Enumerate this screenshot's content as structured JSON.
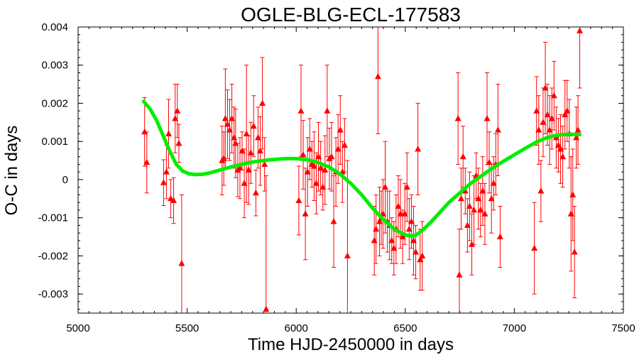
{
  "chart_data": {
    "type": "scatter",
    "title": "OGLE-BLG-ECL-177583",
    "xlabel": "Time HJD-2450000 in days",
    "ylabel": "O-C in days",
    "xlim": [
      5000,
      7500
    ],
    "ylim": [
      -0.0035,
      0.004
    ],
    "xticks": [
      5000,
      5500,
      6000,
      6500,
      7000,
      7500
    ],
    "yticks": [
      -0.003,
      -0.002,
      -0.001,
      0,
      0.001,
      0.002,
      0.003,
      0.004
    ],
    "ytick_labels": [
      "-0.003",
      "-0.002",
      "-0.001",
      "0",
      "0.001",
      "0.002",
      "0.003",
      "0.004"
    ],
    "grid": false,
    "colors": {
      "points": "#ff0000",
      "fit": "#00ee00",
      "axes": "#000000"
    },
    "series": [
      {
        "kind": "points-with-errorbars",
        "marker": "triangle",
        "points": [
          {
            "x": 5305,
            "y": 0.00125,
            "err": 0.0009
          },
          {
            "x": 5315,
            "y": 0.00045,
            "err": 0.0008
          },
          {
            "x": 5392,
            "y": -8e-05,
            "err": 0.0006
          },
          {
            "x": 5405,
            "y": 0.0002,
            "err": 0.0007
          },
          {
            "x": 5415,
            "y": 0.0012,
            "err": 0.0009
          },
          {
            "x": 5425,
            "y": -0.0005,
            "err": 0.0005
          },
          {
            "x": 5438,
            "y": -0.00055,
            "err": 0.0006
          },
          {
            "x": 5445,
            "y": 0.0016,
            "err": 0.0009
          },
          {
            "x": 5455,
            "y": 0.0018,
            "err": 0.0007
          },
          {
            "x": 5462,
            "y": 0.00095,
            "err": 0.0005
          },
          {
            "x": 5475,
            "y": -0.0022,
            "err": 0.0018
          },
          {
            "x": 5660,
            "y": 0.0005,
            "err": 0.0009
          },
          {
            "x": 5668,
            "y": 0.00055,
            "err": 0.0007
          },
          {
            "x": 5675,
            "y": 0.0016,
            "err": 0.0013
          },
          {
            "x": 5685,
            "y": 0.00145,
            "err": 0.0009
          },
          {
            "x": 5695,
            "y": 0.0013,
            "err": 0.0008
          },
          {
            "x": 5705,
            "y": 0.0016,
            "err": 0.0009
          },
          {
            "x": 5715,
            "y": 0.0011,
            "err": 0.0008
          },
          {
            "x": 5722,
            "y": 0.00095,
            "err": 0.0009
          },
          {
            "x": 5732,
            "y": 0.00025,
            "err": 0.0007
          },
          {
            "x": 5742,
            "y": 0.0003,
            "err": 0.0008
          },
          {
            "x": 5752,
            "y": 0.00075,
            "err": 0.0005
          },
          {
            "x": 5762,
            "y": -0.0001,
            "err": 0.0009
          },
          {
            "x": 5772,
            "y": 0.0012,
            "err": 0.0018
          },
          {
            "x": 5782,
            "y": 0.00025,
            "err": 0.0009
          },
          {
            "x": 5792,
            "y": 0.0007,
            "err": 0.0008
          },
          {
            "x": 5805,
            "y": 0.0014,
            "err": 0.0008
          },
          {
            "x": 5815,
            "y": -0.00035,
            "err": 0.0006
          },
          {
            "x": 5825,
            "y": 0.0011,
            "err": 0.0008
          },
          {
            "x": 5835,
            "y": 0.00075,
            "err": 0.0009
          },
          {
            "x": 5845,
            "y": 0.002,
            "err": 0.0012
          },
          {
            "x": 5855,
            "y": 0.0004,
            "err": 0.0007
          },
          {
            "x": 5862,
            "y": -0.0034,
            "err": 0.0035
          },
          {
            "x": 6012,
            "y": -0.00055,
            "err": 0.0009
          },
          {
            "x": 6022,
            "y": 0.0018,
            "err": 0.0012
          },
          {
            "x": 6032,
            "y": 0.00065,
            "err": 0.0009
          },
          {
            "x": 6042,
            "y": -0.0009,
            "err": 0.0012
          },
          {
            "x": 6052,
            "y": 0.0002,
            "err": 0.0009
          },
          {
            "x": 6062,
            "y": 0.0008,
            "err": 0.0008
          },
          {
            "x": 6072,
            "y": 0.0004,
            "err": 0.0006
          },
          {
            "x": 6082,
            "y": 0.00035,
            "err": 0.0009
          },
          {
            "x": 6092,
            "y": -0.0001,
            "err": 0.0008
          },
          {
            "x": 6102,
            "y": 0.0006,
            "err": 0.0009
          },
          {
            "x": 6112,
            "y": 0.0003,
            "err": 0.0007
          },
          {
            "x": 6122,
            "y": -0.0002,
            "err": 0.0006
          },
          {
            "x": 6132,
            "y": 0.00025,
            "err": 0.0009
          },
          {
            "x": 6142,
            "y": 0.0018,
            "err": 0.0012
          },
          {
            "x": 6152,
            "y": 0.00055,
            "err": 0.0008
          },
          {
            "x": 6162,
            "y": 0.0006,
            "err": 0.0009
          },
          {
            "x": 6172,
            "y": -0.0011,
            "err": 0.0012
          },
          {
            "x": 6182,
            "y": 0.0002,
            "err": 0.0009
          },
          {
            "x": 6192,
            "y": 0.0008,
            "err": 0.0009
          },
          {
            "x": 6202,
            "y": 0.0013,
            "err": 0.0009
          },
          {
            "x": 6212,
            "y": 0.0002,
            "err": 0.0008
          },
          {
            "x": 6222,
            "y": 0.0009,
            "err": 0.0007
          },
          {
            "x": 6235,
            "y": -0.002,
            "err": 0.0025
          },
          {
            "x": 6358,
            "y": -0.0016,
            "err": 0.0009
          },
          {
            "x": 6366,
            "y": -0.0013,
            "err": 0.0009
          },
          {
            "x": 6375,
            "y": 0.0027,
            "err": 0.0015
          },
          {
            "x": 6382,
            "y": -0.0011,
            "err": 0.0009
          },
          {
            "x": 6390,
            "y": -0.001,
            "err": 0.0007
          },
          {
            "x": 6398,
            "y": -0.0009,
            "err": 0.0009
          },
          {
            "x": 6408,
            "y": -0.0002,
            "err": 0.0012
          },
          {
            "x": 6418,
            "y": -0.0011,
            "err": 0.0008
          },
          {
            "x": 6428,
            "y": -0.0012,
            "err": 0.0009
          },
          {
            "x": 6438,
            "y": -0.0016,
            "err": 0.0006
          },
          {
            "x": 6448,
            "y": -0.0018,
            "err": 0.0007
          },
          {
            "x": 6458,
            "y": -0.0013,
            "err": 0.0009
          },
          {
            "x": 6468,
            "y": -0.0007,
            "err": 0.0008
          },
          {
            "x": 6478,
            "y": -0.0009,
            "err": 0.0009
          },
          {
            "x": 6488,
            "y": -0.0015,
            "err": 0.0007
          },
          {
            "x": 6498,
            "y": -0.0009,
            "err": 0.0008
          },
          {
            "x": 6508,
            "y": -0.0002,
            "err": 0.0009
          },
          {
            "x": 6518,
            "y": -0.0013,
            "err": 0.0008
          },
          {
            "x": 6528,
            "y": -0.0011,
            "err": 0.0007
          },
          {
            "x": 6538,
            "y": -0.0016,
            "err": 0.0009
          },
          {
            "x": 6548,
            "y": -0.0019,
            "err": 0.0007
          },
          {
            "x": 6558,
            "y": 0.0008,
            "err": 0.0012
          },
          {
            "x": 6568,
            "y": -0.0021,
            "err": 0.0008
          },
          {
            "x": 6578,
            "y": -0.002,
            "err": 0.0009
          },
          {
            "x": 6742,
            "y": 0.0016,
            "err": 0.0012
          },
          {
            "x": 6748,
            "y": -0.0025,
            "err": 0.0012
          },
          {
            "x": 6756,
            "y": -0.0005,
            "err": 0.0008
          },
          {
            "x": 6765,
            "y": 0.0006,
            "err": 0.0008
          },
          {
            "x": 6775,
            "y": -0.0003,
            "err": 0.0006
          },
          {
            "x": 6785,
            "y": -0.0012,
            "err": 0.0007
          },
          {
            "x": 6795,
            "y": -0.0007,
            "err": 0.0009
          },
          {
            "x": 6805,
            "y": -0.0017,
            "err": 0.0008
          },
          {
            "x": 6815,
            "y": -0.0008,
            "err": 0.0009
          },
          {
            "x": 6825,
            "y": 0.0001,
            "err": 0.0006
          },
          {
            "x": 6835,
            "y": -0.0005,
            "err": 0.0008
          },
          {
            "x": 6845,
            "y": -0.0008,
            "err": 0.0007
          },
          {
            "x": 6855,
            "y": -0.0003,
            "err": 0.0009
          },
          {
            "x": 6865,
            "y": -0.0009,
            "err": 0.0008
          },
          {
            "x": 6875,
            "y": 0.0016,
            "err": 0.0012
          },
          {
            "x": 6885,
            "y": 0.00045,
            "err": 0.0008
          },
          {
            "x": 6895,
            "y": -0.0005,
            "err": 0.0009
          },
          {
            "x": 6905,
            "y": -0.0001,
            "err": 0.0007
          },
          {
            "x": 6915,
            "y": 0.0004,
            "err": 0.0008
          },
          {
            "x": 6925,
            "y": 0.0013,
            "err": 0.0012
          },
          {
            "x": 6935,
            "y": -0.0015,
            "err": 0.0008
          },
          {
            "x": 7092,
            "y": -0.0018,
            "err": 0.0012
          },
          {
            "x": 7102,
            "y": 0.0018,
            "err": 0.0009
          },
          {
            "x": 7112,
            "y": 0.0013,
            "err": 0.0009
          },
          {
            "x": 7122,
            "y": -0.0003,
            "err": 0.0008
          },
          {
            "x": 7132,
            "y": 0.0015,
            "err": 0.0009
          },
          {
            "x": 7142,
            "y": 0.0024,
            "err": 0.0012
          },
          {
            "x": 7152,
            "y": 0.0017,
            "err": 0.0008
          },
          {
            "x": 7162,
            "y": 0.0013,
            "err": 0.0009
          },
          {
            "x": 7172,
            "y": 0.0016,
            "err": 0.0008
          },
          {
            "x": 7182,
            "y": 0.0022,
            "err": 0.0009
          },
          {
            "x": 7192,
            "y": 0.0011,
            "err": 0.0008
          },
          {
            "x": 7202,
            "y": 0.0009,
            "err": 0.0007
          },
          {
            "x": 7212,
            "y": 0.0008,
            "err": 0.0009
          },
          {
            "x": 7222,
            "y": 0.0006,
            "err": 0.0008
          },
          {
            "x": 7232,
            "y": 0.0017,
            "err": 0.0009
          },
          {
            "x": 7242,
            "y": 0.0018,
            "err": 0.0008
          },
          {
            "x": 7252,
            "y": 0.0012,
            "err": 0.0009
          },
          {
            "x": 7260,
            "y": -0.0009,
            "err": 0.0015
          },
          {
            "x": 7268,
            "y": -0.0004,
            "err": 0.0012
          },
          {
            "x": 7276,
            "y": -0.0019,
            "err": 0.0012
          },
          {
            "x": 7284,
            "y": 0.0011,
            "err": 0.0008
          },
          {
            "x": 7292,
            "y": 0.0013,
            "err": 0.0009
          },
          {
            "x": 7300,
            "y": 0.0039,
            "err": 0.0015
          }
        ]
      },
      {
        "kind": "fit-curve",
        "x": [
          5300,
          5330,
          5360,
          5390,
          5420,
          5450,
          5480,
          5510,
          5540,
          5570,
          5600,
          5650,
          5700,
          5750,
          5800,
          5850,
          5900,
          5950,
          6000,
          6050,
          6100,
          6150,
          6200,
          6250,
          6300,
          6350,
          6400,
          6450,
          6500,
          6530,
          6550,
          6580,
          6620,
          6660,
          6700,
          6750,
          6800,
          6850,
          6900,
          6950,
          7000,
          7050,
          7100,
          7150,
          7200,
          7250,
          7300
        ],
        "y": [
          0.00205,
          0.00185,
          0.00155,
          0.00115,
          0.00075,
          0.0004,
          0.00022,
          0.00015,
          0.00013,
          0.00014,
          0.00017,
          0.00025,
          0.00033,
          0.0004,
          0.00046,
          0.0005,
          0.00053,
          0.00055,
          0.00055,
          0.00052,
          0.00045,
          0.00033,
          0.00015,
          -0.0001,
          -0.0004,
          -0.00075,
          -0.00105,
          -0.0013,
          -0.00145,
          -0.00148,
          -0.00145,
          -0.00132,
          -0.0011,
          -0.00085,
          -0.0006,
          -0.00035,
          -0.0001,
          0.0001,
          0.0003,
          0.00048,
          0.00065,
          0.00082,
          0.00098,
          0.0011,
          0.00117,
          0.00119,
          0.00118
        ]
      }
    ]
  }
}
